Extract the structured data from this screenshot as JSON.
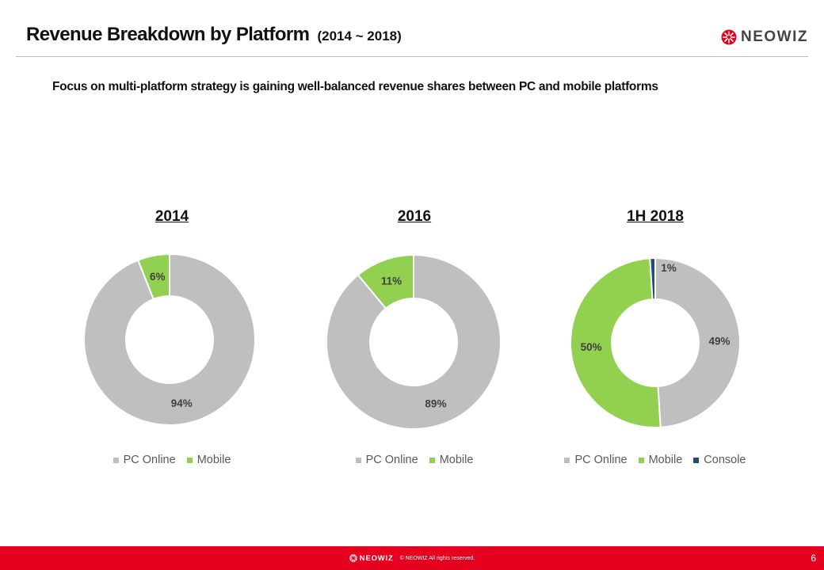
{
  "header": {
    "title": "Revenue Breakdown by Platform",
    "title_range": "(2014 ~ 2018)",
    "logo_text": "NEOWIZ"
  },
  "subtitle": "Focus on multi-platform strategy is gaining well-balanced revenue shares between PC and mobile platforms",
  "colors": {
    "pc_online": "#bfbfbf",
    "mobile": "#92d050",
    "console": "#1f4e79",
    "brand_red": "#e5001f"
  },
  "chart_data": [
    {
      "type": "pie",
      "title": "2014",
      "categories": [
        "PC Online",
        "Mobile"
      ],
      "values": [
        94,
        6
      ],
      "value_labels": [
        "94%",
        "6%"
      ],
      "legend": [
        "PC Online",
        "Mobile"
      ],
      "legend_position": "bottom"
    },
    {
      "type": "pie",
      "title": "2016",
      "categories": [
        "PC Online",
        "Mobile"
      ],
      "values": [
        89,
        11
      ],
      "value_labels": [
        "89%",
        "11%"
      ],
      "legend": [
        "PC Online",
        "Mobile"
      ],
      "legend_position": "bottom"
    },
    {
      "type": "pie",
      "title": "1H 2018",
      "categories": [
        "PC Online",
        "Mobile",
        "Console"
      ],
      "values": [
        49,
        50,
        1
      ],
      "value_labels": [
        "49%",
        "50%",
        "1%"
      ],
      "legend": [
        "PC Online",
        "Mobile",
        "Console"
      ],
      "legend_position": "bottom"
    }
  ],
  "footer": {
    "logo_text": "NEOWIZ",
    "copyright": "© NEOWIZ All rights reserved.",
    "page_number": "6"
  }
}
